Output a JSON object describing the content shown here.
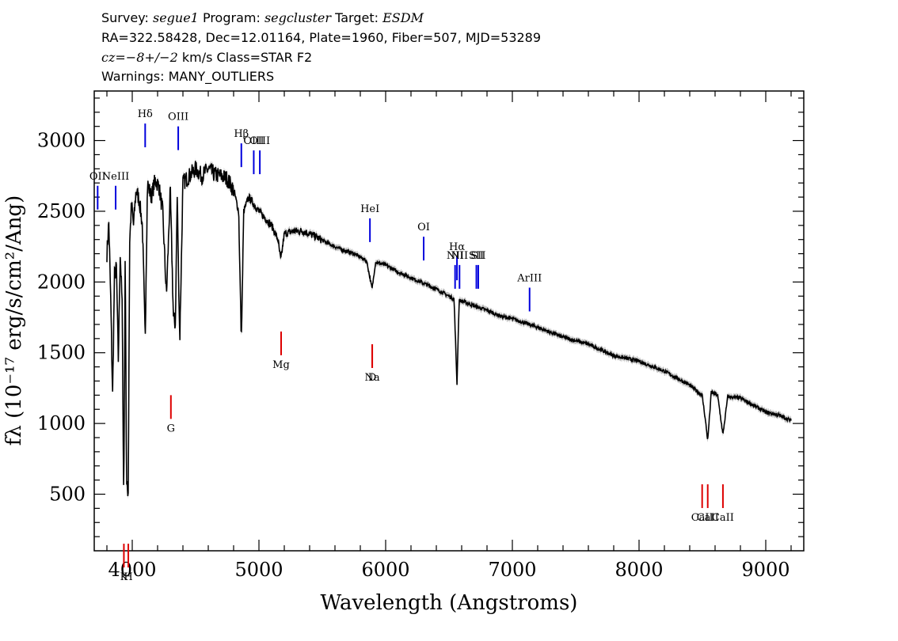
{
  "header": {
    "line1": {
      "survey_label": "Survey:",
      "survey_value": "segue1",
      "program_label": "Program:",
      "program_value": "segcluster",
      "target_label": "Target:",
      "target_value": "ESDM"
    },
    "line2": "RA=322.58428, Dec=12.01164, Plate=1960, Fiber=507, MJD=53289",
    "line3": {
      "cz_value": "cz=−8+/−2",
      "cz_rest": " km/s Class=STAR F2"
    },
    "line4": "Warnings: MANY_OUTLIERS"
  },
  "chart_data": {
    "type": "line",
    "xlabel": "Wavelength (Angstroms)",
    "ylabel": "fλ (10⁻¹⁷ erg/s/cm²/Ang)",
    "xlim": [
      3700,
      9300
    ],
    "ylim": [
      100,
      3350
    ],
    "x_ticks": [
      4000,
      5000,
      6000,
      7000,
      8000,
      9000
    ],
    "y_ticks": [
      500,
      1000,
      1500,
      2000,
      2500,
      3000
    ],
    "series": [
      {
        "x": [
          3800,
          3815,
          3830,
          3845,
          3860,
          3875,
          3890,
          3905,
          3920,
          3933,
          3945,
          3955,
          3968,
          3980,
          3995,
          4010,
          4030,
          4055,
          4080,
          4102,
          4120,
          4150,
          4180,
          4210,
          4240,
          4270,
          4300,
          4325,
          4340,
          4355,
          4375,
          4400,
          4450,
          4500,
          4550,
          4600,
          4650,
          4700,
          4750,
          4800,
          4840,
          4861,
          4880,
          4920,
          4960,
          5000,
          5050,
          5100,
          5150,
          5172,
          5200,
          5270,
          5350,
          5450,
          5550,
          5650,
          5750,
          5850,
          5893,
          5920,
          6000,
          6100,
          6200,
          6300,
          6400,
          6500,
          6540,
          6563,
          6580,
          6620,
          6700,
          6800,
          6900,
          7000,
          7200,
          7400,
          7600,
          7800,
          8000,
          8200,
          8400,
          8498,
          8520,
          8542,
          8570,
          8620,
          8662,
          8700,
          8800,
          8900,
          9000,
          9100,
          9200
        ],
        "y": [
          2200,
          2420,
          1880,
          1200,
          2050,
          2100,
          1450,
          2200,
          1850,
          450,
          2250,
          550,
          520,
          2300,
          2550,
          2400,
          2650,
          2580,
          2400,
          1600,
          2700,
          2600,
          2720,
          2680,
          2500,
          1900,
          2650,
          1750,
          1700,
          2600,
          1580,
          2700,
          2750,
          2800,
          2750,
          2800,
          2760,
          2750,
          2730,
          2650,
          2500,
          1580,
          2500,
          2600,
          2550,
          2500,
          2450,
          2400,
          2300,
          2150,
          2340,
          2360,
          2360,
          2320,
          2270,
          2230,
          2200,
          2150,
          1950,
          2140,
          2120,
          2070,
          2030,
          1990,
          1950,
          1900,
          1880,
          1280,
          1870,
          1860,
          1830,
          1800,
          1760,
          1740,
          1680,
          1610,
          1560,
          1480,
          1440,
          1370,
          1270,
          1200,
          1050,
          880,
          1220,
          1200,
          920,
          1190,
          1180,
          1130,
          1080,
          1060,
          1020
        ]
      }
    ],
    "emission_lines": [
      {
        "name": "OII",
        "x": 3727,
        "y": 2680
      },
      {
        "name": "NeIII",
        "x": 3869,
        "y": 2680
      },
      {
        "name": "Hδ",
        "x": 4102,
        "y": 3120
      },
      {
        "name": "OIII",
        "x": 4363,
        "y": 3100
      },
      {
        "name": "Hβ",
        "x": 4861,
        "y": 2980
      },
      {
        "name": "OIII",
        "x": 4959,
        "y": 2930
      },
      {
        "name": "OIII",
        "x": 5007,
        "y": 2930
      },
      {
        "name": "HeI",
        "x": 5876,
        "y": 2450
      },
      {
        "name": "OI",
        "x": 6300,
        "y": 2320
      },
      {
        "name": "NII",
        "x": 6548,
        "y": 2120
      },
      {
        "name": "Hα",
        "x": 6563,
        "y": 2180
      },
      {
        "name": "NII",
        "x": 6583,
        "y": 2120
      },
      {
        "name": "SII",
        "x": 6716,
        "y": 2120
      },
      {
        "name": "SII",
        "x": 6731,
        "y": 2120
      },
      {
        "name": "ArIII",
        "x": 7136,
        "y": 1960
      }
    ],
    "absorption_lines": [
      {
        "name": "K",
        "x": 3934,
        "y": 150
      },
      {
        "name": "H",
        "x": 3969,
        "y": 150
      },
      {
        "name": "G",
        "x": 4305,
        "y": 1200
      },
      {
        "name": "Mg",
        "x": 5175,
        "y": 1650
      },
      {
        "name": "Na",
        "x": 5894,
        "y": 1560
      },
      {
        "name": "D",
        "x": 5894,
        "y": 1560
      },
      {
        "name": "CaII",
        "x": 8498,
        "y": 570
      },
      {
        "name": "CaII",
        "x": 8542,
        "y": 570
      },
      {
        "name": "CaII",
        "x": 8662,
        "y": 570
      }
    ],
    "colors": {
      "spectrum": "#000000",
      "emission": "#0000dd",
      "absorption": "#dd0000"
    }
  }
}
